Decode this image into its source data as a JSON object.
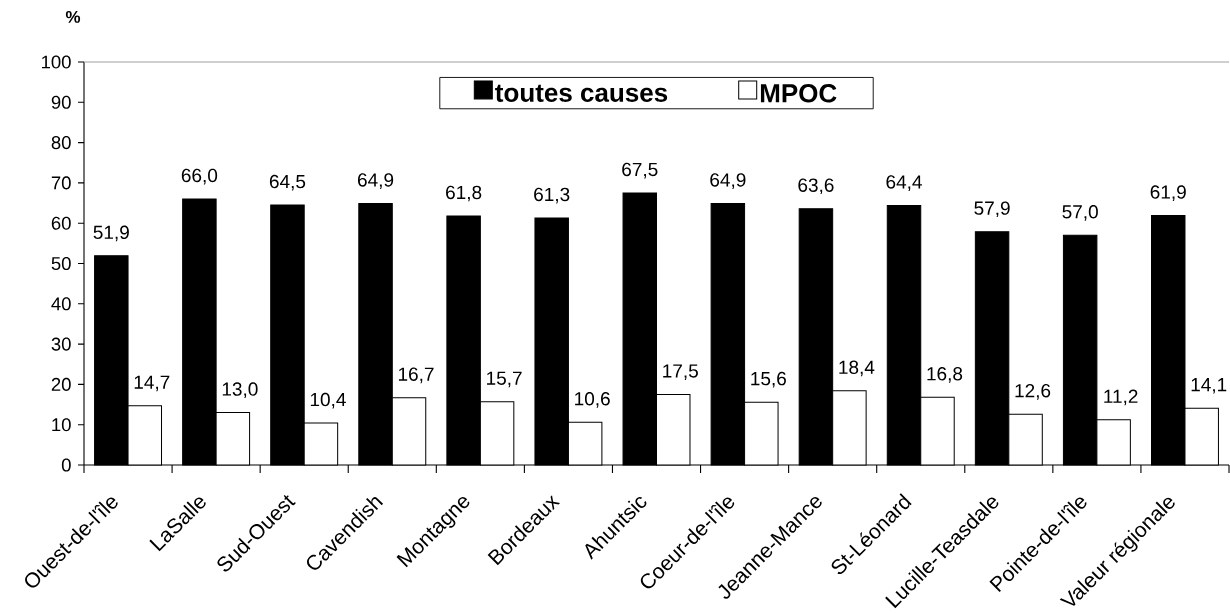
{
  "chart_data": {
    "type": "bar",
    "ylabel": "%",
    "categories": [
      "Ouest-de-l'île",
      "LaSalle",
      "Sud-Ouest",
      "Cavendish",
      "Montagne",
      "Bordeaux",
      "Ahuntsic",
      "Coeur-de-l'île",
      "Jeanne-Mance",
      "St-Léonard",
      "Lucille-Teasdale",
      "Pointe-de-l'île",
      "Valeur régionale"
    ],
    "series": [
      {
        "name": "toutes causes",
        "color": "#000000",
        "values": [
          51.9,
          66.0,
          64.5,
          64.9,
          61.8,
          61.3,
          67.5,
          64.9,
          63.6,
          64.4,
          57.9,
          57.0,
          61.9
        ],
        "value_labels": [
          "51,9",
          "66,0",
          "64,5",
          "64,9",
          "61,8",
          "61,3",
          "67,5",
          "64,9",
          "63,6",
          "64,4",
          "57,9",
          "57,0",
          "61,9"
        ]
      },
      {
        "name": "MPOC",
        "color": "#ffffff",
        "values": [
          14.7,
          13.0,
          10.4,
          16.7,
          15.7,
          10.6,
          17.5,
          15.6,
          18.4,
          16.8,
          12.6,
          11.2,
          14.1
        ],
        "value_labels": [
          "14,7",
          "13,0",
          "10,4",
          "16,7",
          "15,7",
          "10,6",
          "17,5",
          "15,6",
          "18,4",
          "16,8",
          "12,6",
          "11,2",
          "14,1"
        ]
      }
    ],
    "ylim": [
      0,
      100
    ],
    "yticks": [
      0,
      10,
      20,
      30,
      40,
      50,
      60,
      70,
      80,
      90,
      100
    ],
    "legend": "top"
  }
}
